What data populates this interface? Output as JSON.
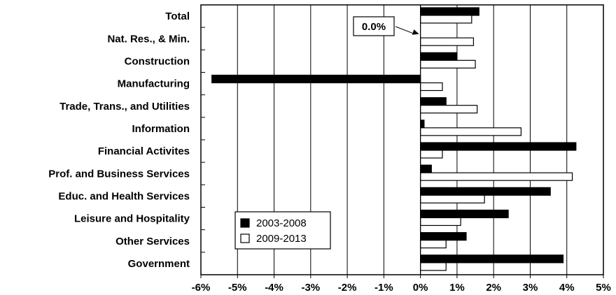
{
  "chart_data": {
    "type": "bar",
    "orientation": "horizontal",
    "categories": [
      "Total",
      "Nat. Res., & Min.",
      "Construction",
      "Manufacturing",
      "Trade, Trans., and Utilities",
      "Information",
      "Financial Activites",
      "Prof. and Business Services",
      "Educ. and Health Services",
      "Leisure and Hospitality",
      "Other Services",
      "Government"
    ],
    "series": [
      {
        "name": "2003-2008",
        "color": "#000000",
        "values": [
          1.6,
          0.0,
          1.0,
          -5.7,
          0.7,
          0.1,
          4.25,
          0.3,
          3.55,
          2.4,
          1.25,
          3.9
        ]
      },
      {
        "name": "2009-2013",
        "color": "#ffffff",
        "values": [
          1.4,
          1.45,
          1.5,
          0.6,
          1.55,
          2.75,
          0.6,
          4.15,
          1.75,
          1.1,
          0.7,
          0.7
        ]
      }
    ],
    "xlim": [
      -6,
      5
    ],
    "x_ticks": [
      "-6%",
      "-5%",
      "-4%",
      "-3%",
      "-2%",
      "-1%",
      "0%",
      "1%",
      "2%",
      "3%",
      "4%",
      "5%"
    ],
    "grid": "vertical",
    "legend": {
      "position": "bottom-left",
      "entries": [
        "2003-2008",
        "2009-2013"
      ]
    },
    "annotations": [
      {
        "text": "0.0%",
        "category": "Nat. Res., & Min.",
        "series": "2003-2008"
      }
    ],
    "title": "",
    "xlabel": "",
    "ylabel": ""
  }
}
